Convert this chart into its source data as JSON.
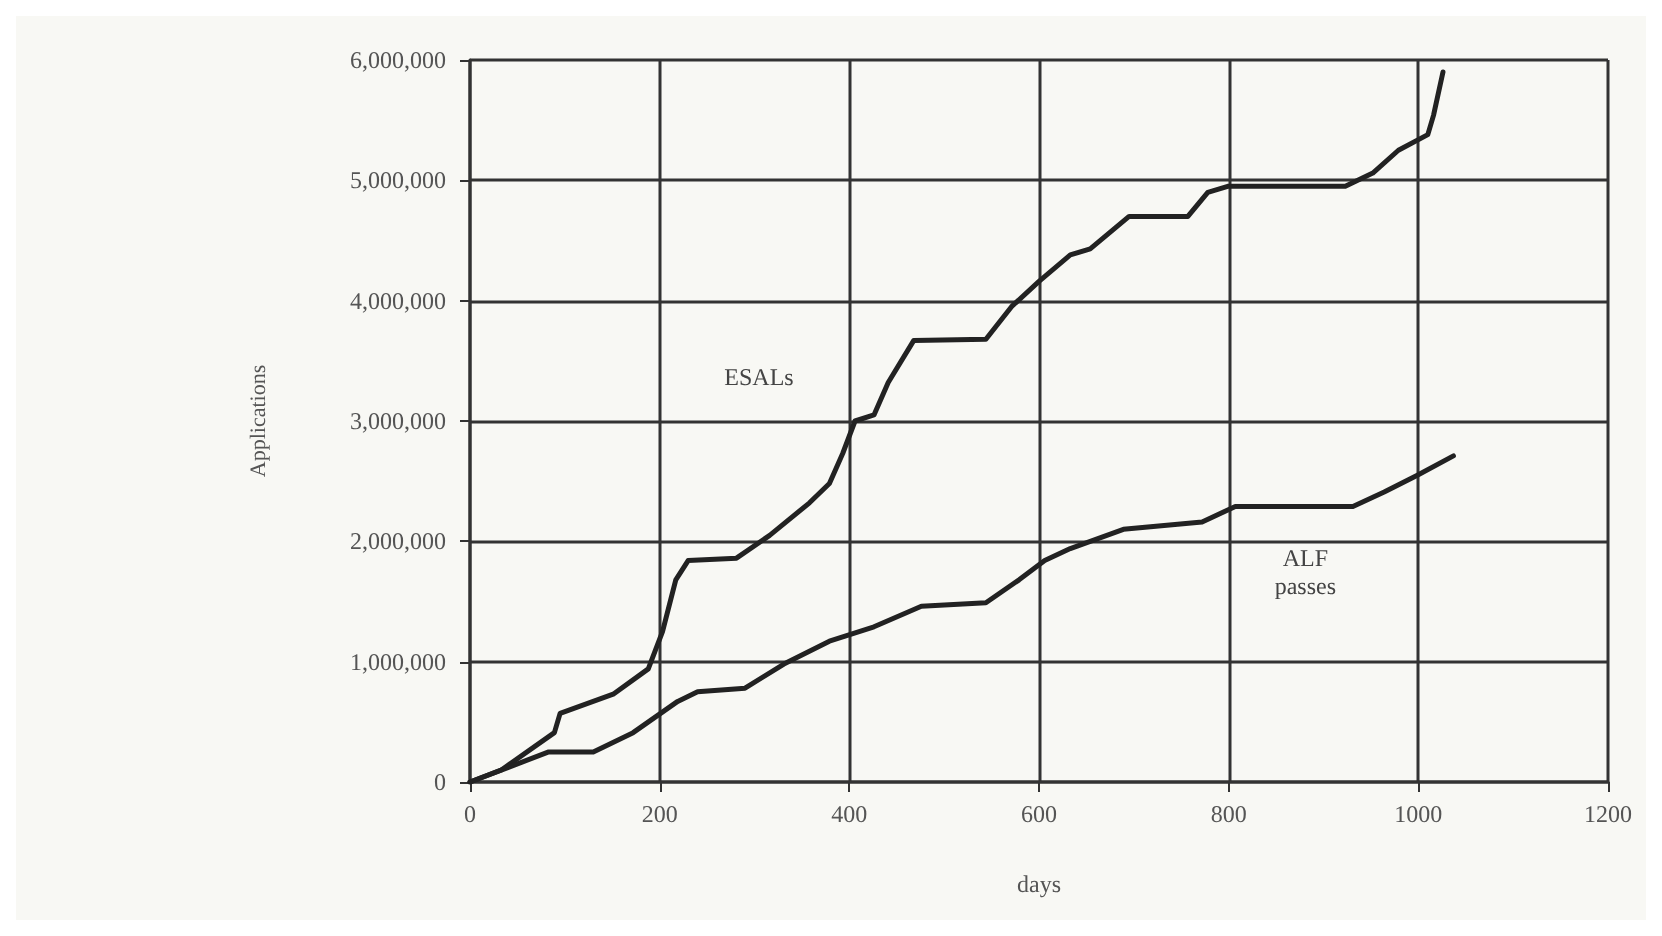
{
  "chart_data": {
    "type": "line",
    "xlabel": "days",
    "ylabel": "Applications",
    "xlim": [
      0,
      1200
    ],
    "xticks": [
      0,
      200,
      400,
      600,
      800,
      1000,
      1200
    ],
    "ylim": [
      0,
      6000000
    ],
    "yticks": [
      {
        "value": 0,
        "label": "0"
      },
      {
        "value": 1000000,
        "label": "1,000,000"
      },
      {
        "value": 2000000,
        "label": "2,000,000"
      },
      {
        "value": 3000000,
        "label": "3,000,000"
      },
      {
        "value": 4000000,
        "label": "4,000,000"
      },
      {
        "value": 5000000,
        "label": "5,000,000"
      },
      {
        "value": 6000000,
        "label": "6,000,000"
      }
    ],
    "grid": true,
    "legend": false,
    "marker": "none",
    "line_style": "solid",
    "series": [
      {
        "name": "ESALs",
        "color": "#222222",
        "x": [
          0,
          33,
          89,
          95,
          151,
          188,
          203,
          217,
          230,
          281,
          316,
          358,
          379,
          393,
          406,
          426,
          441,
          468,
          544,
          571,
          600,
          633,
          654,
          695,
          757,
          778,
          799,
          923,
          952,
          979,
          1010,
          1016,
          1026
        ],
        "values": [
          0,
          100000,
          410000,
          570000,
          730000,
          940000,
          1250000,
          1680000,
          1840000,
          1860000,
          2050000,
          2320000,
          2480000,
          2730000,
          3000000,
          3050000,
          3320000,
          3670000,
          3680000,
          3950000,
          4160000,
          4380000,
          4430000,
          4700000,
          4700000,
          4900000,
          4950000,
          4950000,
          5060000,
          5250000,
          5380000,
          5540000,
          5900000
        ]
      },
      {
        "name": "ALF\npasses",
        "color": "#222222",
        "x": [
          0,
          83,
          130,
          172,
          219,
          240,
          290,
          331,
          379,
          426,
          476,
          544,
          579,
          606,
          633,
          689,
          772,
          807,
          931,
          964,
          999,
          1037
        ],
        "values": [
          0,
          250000,
          250000,
          410000,
          670000,
          750000,
          780000,
          980000,
          1170000,
          1290000,
          1460000,
          1490000,
          1680000,
          1840000,
          1940000,
          2100000,
          2160000,
          2290000,
          2290000,
          2410000,
          2550000,
          2710000
        ]
      }
    ]
  }
}
